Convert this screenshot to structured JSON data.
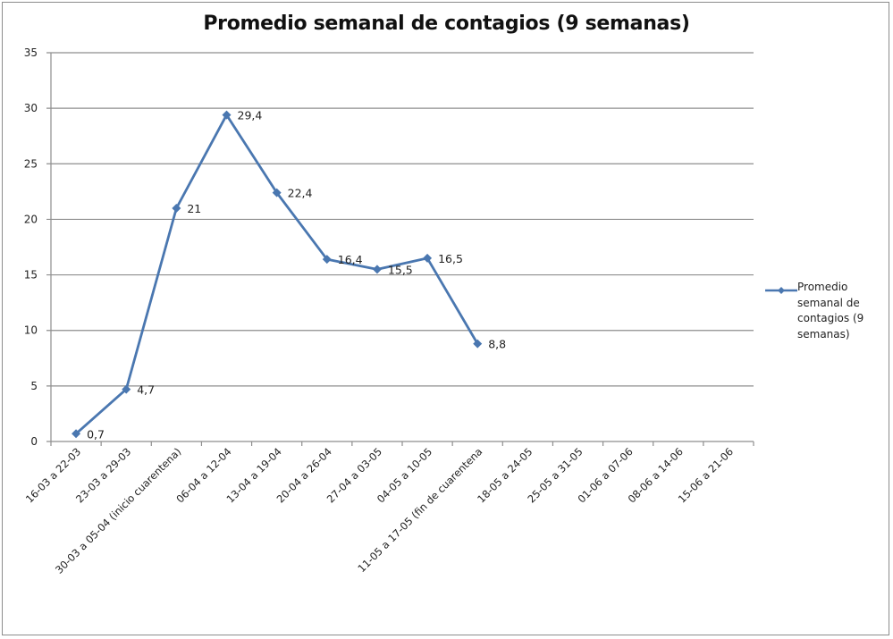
{
  "chart_data": {
    "type": "line",
    "title": "Promedio semanal de contagios (9 semanas)",
    "xlabel": "",
    "ylabel": "",
    "ylim": [
      0,
      35
    ],
    "yticks": [
      0,
      5,
      10,
      15,
      20,
      25,
      30,
      35
    ],
    "grid": true,
    "legend_position": "right",
    "categories": [
      "16-03 a 22-03",
      "23-03 a 29-03",
      "30-03 a 05-04 (inicio cuarentena)",
      "06-04 a 12-04",
      "13-04 a 19-04",
      "20-04 a 26-04",
      "27-04 a 03-05",
      "04-05 a 10-05",
      "11-05 a 17-05 (fin de cuarentena",
      "18-05 a 24-05",
      "25-05 a 31-05",
      "01-06 a 07-06",
      "08-06 a 14-06",
      "15-06 a 21-06"
    ],
    "series": [
      {
        "name": "Promedio semanal de contagios (9 semanas)",
        "color": "#4a77b0",
        "values": [
          0.7,
          4.7,
          21,
          29.4,
          22.4,
          16.4,
          15.5,
          16.5,
          8.8,
          null,
          null,
          null,
          null,
          null
        ],
        "labels": [
          "0,7",
          "4,7",
          "21",
          "29,4",
          "22,4",
          "16,4",
          "15,5",
          "16,5",
          "8,8"
        ]
      }
    ]
  },
  "legend": {
    "lines": [
      "Promedio",
      "semanal de",
      "contagios (9",
      "semanas)"
    ]
  }
}
